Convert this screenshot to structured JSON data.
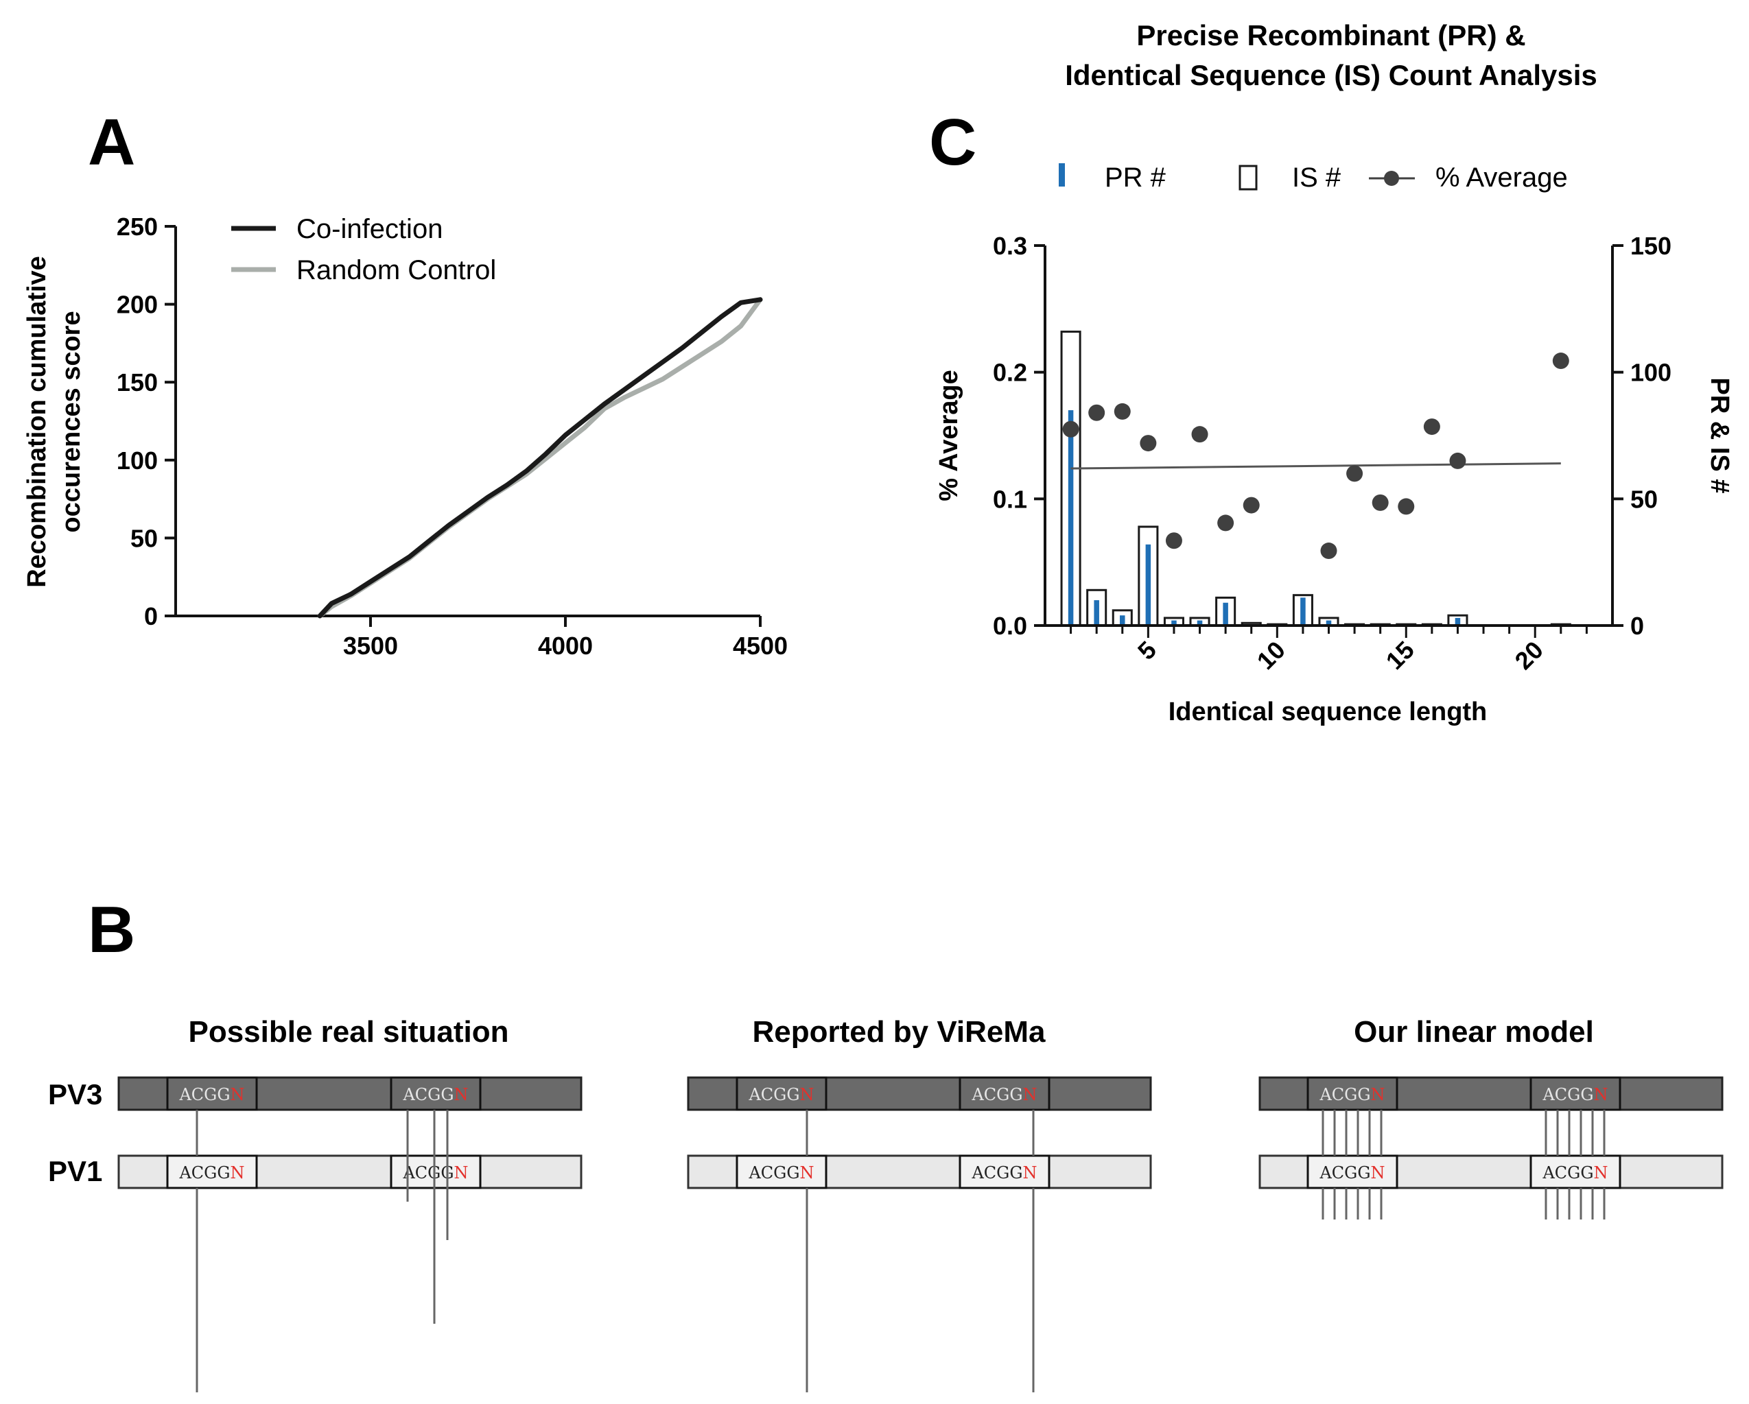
{
  "panels": {
    "a_letter": "A",
    "b_letter": "B",
    "c_letter": "C"
  },
  "chart_data": [
    {
      "id": "A",
      "type": "line",
      "title": "",
      "xlabel": "",
      "ylabel": "Recombination cumulative occurences score",
      "ylabel_line1": "Recombination cumulative",
      "ylabel_line2": "occurences score",
      "xlim": [
        3000,
        4500
      ],
      "ylim": [
        0,
        250
      ],
      "xticks": [
        3500,
        4000,
        4500
      ],
      "xtick_labels": [
        "3500",
        "4000",
        "4500"
      ],
      "yticks": [
        0,
        50,
        100,
        150,
        200,
        250
      ],
      "ytick_labels": [
        "0",
        "50",
        "100",
        "150",
        "200",
        "250"
      ],
      "grid": false,
      "legend_position": "top-left",
      "series": [
        {
          "name": "Co-infection",
          "color": "#1a1a1a",
          "x": [
            3370,
            3400,
            3450,
            3500,
            3550,
            3600,
            3650,
            3700,
            3750,
            3800,
            3850,
            3900,
            3950,
            4000,
            4050,
            4100,
            4150,
            4200,
            4250,
            4300,
            4350,
            4400,
            4450,
            4500
          ],
          "y": [
            0,
            8,
            14,
            22,
            30,
            38,
            48,
            58,
            67,
            76,
            84,
            93,
            104,
            116,
            126,
            136,
            145,
            154,
            163,
            172,
            182,
            192,
            201,
            203
          ]
        },
        {
          "name": "Random Control",
          "color": "#a9aeaa",
          "x": [
            3370,
            3400,
            3450,
            3500,
            3550,
            3600,
            3650,
            3700,
            3750,
            3800,
            3850,
            3900,
            3950,
            4000,
            4050,
            4100,
            4150,
            4200,
            4250,
            4300,
            4350,
            4400,
            4450,
            4500
          ],
          "y": [
            0,
            6,
            13,
            21,
            29,
            37,
            47,
            57,
            66,
            75,
            83,
            91,
            101,
            111,
            121,
            133,
            140,
            146,
            152,
            160,
            168,
            176,
            186,
            203
          ]
        }
      ]
    },
    {
      "id": "C",
      "type": "bar",
      "title": "Precise Recombinant (PR) & Identical Sequence (IS) Count Analysis",
      "title_line1": "Precise Recombinant (PR) &",
      "title_line2": "Identical Sequence (IS) Count Analysis",
      "xlabel": "Identical sequence length",
      "ylabel": "% Average",
      "y2label": "PR & IS #",
      "xlim": [
        1,
        23
      ],
      "ylim": [
        0,
        0.3
      ],
      "y2lim": [
        0,
        150
      ],
      "xticks": [
        5,
        10,
        15,
        20
      ],
      "xtick_labels": [
        "5",
        "10",
        "15",
        "20"
      ],
      "yticks": [
        0,
        0.1,
        0.2,
        0.3
      ],
      "ytick_labels": [
        "0.0",
        "0.1",
        "0.2",
        "0.3"
      ],
      "y2ticks": [
        0,
        50,
        100,
        150
      ],
      "y2tick_labels": [
        "0",
        "50",
        "100",
        "150"
      ],
      "grid": false,
      "legend_position": "top",
      "categories": [
        2,
        3,
        4,
        5,
        6,
        7,
        8,
        9,
        10,
        11,
        12,
        13,
        14,
        15,
        16,
        17,
        18,
        19,
        20,
        21
      ],
      "series": [
        {
          "name": "PR #",
          "kind": "bar",
          "axis": "right",
          "color": "#1f6fb5",
          "values": [
            85,
            10,
            4,
            32,
            2,
            2,
            9,
            0.5,
            0.3,
            11,
            2,
            0.3,
            0.3,
            0.3,
            0.3,
            3,
            0,
            0,
            0,
            0.3
          ]
        },
        {
          "name": "IS #",
          "kind": "bar-outline",
          "axis": "right",
          "color": "#1a1a1a",
          "values": [
            116,
            14,
            6,
            39,
            3,
            3,
            11,
            1,
            0.5,
            12,
            3,
            0.5,
            0.5,
            0.5,
            0.5,
            4,
            0,
            0,
            0,
            0.5
          ]
        },
        {
          "name": "% Average",
          "kind": "scatter",
          "axis": "left",
          "color": "#404040",
          "x": [
            2,
            3,
            4,
            5,
            6,
            7,
            8,
            9,
            12,
            13,
            14,
            15,
            16,
            17,
            21
          ],
          "values": [
            0.155,
            0.168,
            0.169,
            0.144,
            0.067,
            0.151,
            0.081,
            0.095,
            0.059,
            0.12,
            0.097,
            0.094,
            0.157,
            0.13,
            0.209
          ]
        },
        {
          "name": "% Average trend",
          "kind": "line",
          "axis": "left",
          "color": "#555555",
          "x": [
            2,
            21
          ],
          "values": [
            0.124,
            0.128
          ]
        }
      ]
    }
  ],
  "legend_a": {
    "coinfection": "Co-infection",
    "random": "Random Control"
  },
  "legend_c": {
    "pr": "PR #",
    "is": "IS #",
    "avg": "% Average"
  },
  "diagram_b": {
    "columns": [
      {
        "title": "Possible real situation"
      },
      {
        "title": "Reported by ViReMa"
      },
      {
        "title": "Our linear model"
      }
    ],
    "labels": {
      "pv3": "PV3",
      "pv1": "PV1"
    },
    "motif_base": "ACGG",
    "motif_variable": "N",
    "colors": {
      "pv3_fill": "#6a6a6a",
      "pv1_fill": "#e8e8e8",
      "motif_red": "#e3312c"
    }
  }
}
